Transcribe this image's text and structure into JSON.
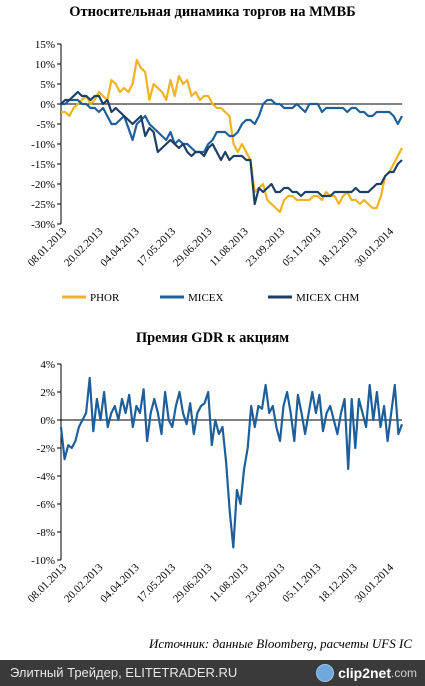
{
  "chart_data": [
    {
      "type": "line",
      "title": "Относительная динамика торгов на ММВБ",
      "y_tick_labels": [
        "15%",
        "10%",
        "5%",
        "0%",
        "-5%",
        "-10%",
        "-15%",
        "-20%",
        "-25%",
        "-30%"
      ],
      "ylim": [
        -30,
        15
      ],
      "x_tick_labels": [
        "08.01.2013",
        "20.02.2013",
        "04.04.2013",
        "17.05.2013",
        "29.06.2013",
        "11.08.2013",
        "23.09.2013",
        "05.11.2013",
        "18.12.2013",
        "30.01.2014"
      ],
      "legend_position": "bottom",
      "series": [
        {
          "name": "PHOR",
          "color": "#f0b323",
          "values": [
            -2,
            -2,
            -3,
            -1,
            0,
            1,
            2,
            0,
            1,
            3,
            2,
            1,
            6,
            5,
            3,
            4,
            3,
            5,
            11,
            9,
            8,
            1,
            5,
            4,
            3,
            1,
            6,
            2,
            7,
            5,
            6,
            2,
            3,
            1,
            2,
            2,
            0,
            -1,
            -1,
            -2,
            -3,
            -10,
            -12,
            -10,
            -12,
            -14,
            -22,
            -21,
            -20,
            -24,
            -25,
            -26,
            -27,
            -24,
            -23,
            -23,
            -24,
            -24,
            -24,
            -24,
            -23,
            -23,
            -24,
            -22,
            -23,
            -23,
            -25,
            -23,
            -22,
            -24,
            -24,
            -25,
            -24,
            -25,
            -26,
            -26,
            -23,
            -18,
            -17,
            -15,
            -13,
            -11
          ]
        },
        {
          "name": "MICEX",
          "color": "#1f5f99",
          "values": [
            0,
            0,
            1,
            1,
            1,
            0,
            0,
            -1,
            -1,
            -2,
            -1,
            -3,
            -5,
            -5,
            -4,
            -3,
            -6,
            -9,
            -5,
            -4,
            -3,
            -5,
            -6,
            -7,
            -8,
            -9,
            -7,
            -10,
            -9,
            -10,
            -10,
            -11,
            -12,
            -12,
            -12,
            -10,
            -9,
            -7,
            -7,
            -7,
            -8,
            -8,
            -7,
            -5,
            -4,
            -4,
            -5,
            -3,
            0,
            1,
            1,
            0,
            0,
            -1,
            -1,
            -1,
            0,
            -1,
            -2,
            0,
            0,
            0,
            -2,
            -1,
            -1,
            -1,
            -1,
            -1,
            -2,
            -1,
            -1,
            -2,
            -2,
            -3,
            -3,
            -2,
            -2,
            -2,
            -2,
            -3,
            -5,
            -3
          ]
        },
        {
          "name": "MICEX CHM",
          "color": "#1c3f66",
          "values": [
            0,
            1,
            1,
            2,
            3,
            2,
            2,
            1,
            2,
            2,
            0,
            1,
            -2,
            -1,
            -2,
            -3,
            -4,
            -5,
            -4,
            -3,
            -8,
            -6,
            -7,
            -12,
            -11,
            -10,
            -9,
            -10,
            -11,
            -10,
            -12,
            -13,
            -12,
            -12,
            -13,
            -11,
            -10,
            -12,
            -14,
            -12,
            -14,
            -13,
            -13,
            -13,
            -14,
            -14,
            -25,
            -21,
            -22,
            -21,
            -20,
            -22,
            -22,
            -21,
            -21,
            -22,
            -22,
            -23,
            -22,
            -22,
            -22,
            -22,
            -23,
            -23,
            -23,
            -22,
            -22,
            -22,
            -22,
            -22,
            -21,
            -22,
            -22,
            -22,
            -21,
            -20,
            -20,
            -18,
            -17,
            -17,
            -15,
            -14
          ]
        }
      ]
    },
    {
      "type": "line",
      "title": "Премия GDR к акциям",
      "y_tick_labels": [
        "4%",
        "2%",
        "0%",
        "-2%",
        "-4%",
        "-6%",
        "-8%",
        "-10%"
      ],
      "ylim": [
        -10,
        4
      ],
      "x_tick_labels": [
        "08.01.2013",
        "20.02.2013",
        "04.04.2013",
        "17.05.2013",
        "29.06.2013",
        "11.08.2013",
        "23.09.2013",
        "05.11.2013",
        "18.12.2013",
        "30.01.2014"
      ],
      "series": [
        {
          "color": "#1f5f99",
          "values": [
            -0.5,
            -2.8,
            -1.8,
            -2.0,
            -1.5,
            -0.5,
            0.0,
            0.5,
            3.0,
            -0.8,
            1.5,
            0.0,
            2.0,
            -0.5,
            0.5,
            1.0,
            0.0,
            1.5,
            0.5,
            1.8,
            -0.5,
            1.0,
            0.5,
            2.2,
            -1.5,
            0.5,
            1.5,
            0.5,
            -1.0,
            2.0,
            0.0,
            -0.5,
            1.0,
            2.0,
            0.5,
            -0.3,
            1.2,
            -1.0,
            0.5,
            1.0,
            1.2,
            2.0,
            -1.8,
            0.0,
            -1.0,
            -0.5,
            -3.0,
            -6.5,
            -9.1,
            -5.0,
            -6.0,
            -3.5,
            -2.0,
            1.0,
            -0.5,
            1.0,
            0.8,
            2.5,
            0.5,
            1.0,
            -0.5,
            -1.5,
            1.0,
            2.0,
            0.5,
            -1.5,
            1.8,
            0.5,
            -1.0,
            0.5,
            2.0,
            0.5,
            1.8,
            -0.8,
            0.5,
            1.0,
            0.0,
            -1.0,
            0.5,
            1.5,
            -3.5,
            1.5,
            -2.0,
            1.5,
            0.5,
            -0.5,
            2.5,
            0.0,
            2.0,
            -0.5,
            1.0,
            -1.5,
            0.5,
            2.5,
            -1.0,
            -0.3
          ]
        }
      ]
    }
  ],
  "source_text": "Источник: данные Bloomberg, расчеты UFS IC",
  "footer": {
    "caption": "Элитный Трейдер, ELITETRADER.RU",
    "logo_main": "clip2net",
    "logo_suffix": ".com"
  }
}
